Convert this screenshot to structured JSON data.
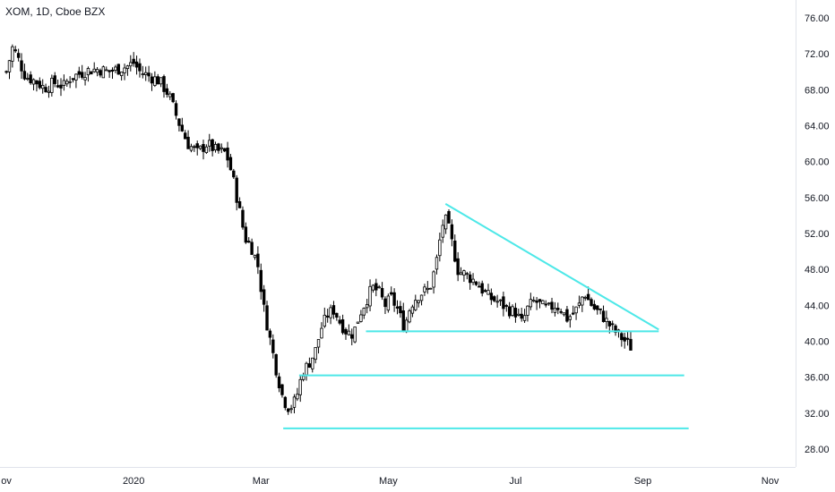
{
  "symbol_title": "XOM, 1D, Cboe BZX",
  "colors": {
    "candle": "#000000",
    "trendline": "#4de8e8",
    "axis": "#e0e3eb",
    "text": "#131722"
  },
  "chart_data": {
    "type": "candlestick",
    "x_axis": {
      "min_month_index": -0.1,
      "max_month_index": 12.4,
      "ticks": [
        {
          "label": "ov",
          "month_index": 0
        },
        {
          "label": "2020",
          "month_index": 2
        },
        {
          "label": "Mar",
          "month_index": 4
        },
        {
          "label": "May",
          "month_index": 6
        },
        {
          "label": "Jul",
          "month_index": 8
        },
        {
          "label": "Sep",
          "month_index": 10
        },
        {
          "label": "Nov",
          "month_index": 12
        }
      ]
    },
    "y_axis": {
      "min": 26.0,
      "max": 78.0,
      "ticks": [
        "28.00",
        "32.00",
        "36.00",
        "40.00",
        "44.00",
        "48.00",
        "52.00",
        "56.00",
        "60.00",
        "64.00",
        "68.00",
        "72.00",
        "76.00"
      ]
    },
    "close_path": [
      [
        0.0,
        70.0
      ],
      [
        0.1,
        72.8
      ],
      [
        0.2,
        71.2
      ],
      [
        0.3,
        69.5
      ],
      [
        0.45,
        69.0
      ],
      [
        0.6,
        68.2
      ],
      [
        0.75,
        68.8
      ],
      [
        0.9,
        68.4
      ],
      [
        1.0,
        69.3
      ],
      [
        1.15,
        69.8
      ],
      [
        1.3,
        70.2
      ],
      [
        1.45,
        70.3
      ],
      [
        1.6,
        70.0
      ],
      [
        1.75,
        70.3
      ],
      [
        1.9,
        70.6
      ],
      [
        2.0,
        71.0
      ],
      [
        2.1,
        70.0
      ],
      [
        2.25,
        69.5
      ],
      [
        2.4,
        69.0
      ],
      [
        2.55,
        67.5
      ],
      [
        2.7,
        64.5
      ],
      [
        2.85,
        62.0
      ],
      [
        3.0,
        61.0
      ],
      [
        3.15,
        62.0
      ],
      [
        3.3,
        61.2
      ],
      [
        3.45,
        61.0
      ],
      [
        3.55,
        58.5
      ],
      [
        3.65,
        55.0
      ],
      [
        3.75,
        51.5
      ],
      [
        3.85,
        50.5
      ],
      [
        3.95,
        48.5
      ],
      [
        4.05,
        43.5
      ],
      [
        4.15,
        40.0
      ],
      [
        4.25,
        36.5
      ],
      [
        4.35,
        33.5
      ],
      [
        4.45,
        32.5
      ],
      [
        4.55,
        33.5
      ],
      [
        4.65,
        36.5
      ],
      [
        4.75,
        37.5
      ],
      [
        4.85,
        38.8
      ],
      [
        4.95,
        41.5
      ],
      [
        5.05,
        43.0
      ],
      [
        5.15,
        43.5
      ],
      [
        5.25,
        42.0
      ],
      [
        5.35,
        41.0
      ],
      [
        5.45,
        40.8
      ],
      [
        5.55,
        43.0
      ],
      [
        5.65,
        44.5
      ],
      [
        5.75,
        46.0
      ],
      [
        5.85,
        45.5
      ],
      [
        5.95,
        44.0
      ],
      [
        6.05,
        44.8
      ],
      [
        6.15,
        43.5
      ],
      [
        6.25,
        41.5
      ],
      [
        6.35,
        44.0
      ],
      [
        6.45,
        45.0
      ],
      [
        6.55,
        45.5
      ],
      [
        6.65,
        45.8
      ],
      [
        6.75,
        48.5
      ],
      [
        6.85,
        53.0
      ],
      [
        6.92,
        53.5
      ],
      [
        7.0,
        51.0
      ],
      [
        7.1,
        47.8
      ],
      [
        7.2,
        47.5
      ],
      [
        7.3,
        47.0
      ],
      [
        7.4,
        46.5
      ],
      [
        7.5,
        45.5
      ],
      [
        7.6,
        44.8
      ],
      [
        7.7,
        44.5
      ],
      [
        7.8,
        44.0
      ],
      [
        7.9,
        43.5
      ],
      [
        8.0,
        43.2
      ],
      [
        8.1,
        42.0
      ],
      [
        8.2,
        43.8
      ],
      [
        8.3,
        44.5
      ],
      [
        8.4,
        44.0
      ],
      [
        8.5,
        43.5
      ],
      [
        8.6,
        44.0
      ],
      [
        8.7,
        43.8
      ],
      [
        8.8,
        42.5
      ],
      [
        8.9,
        43.0
      ],
      [
        9.0,
        44.0
      ],
      [
        9.08,
        45.5
      ],
      [
        9.15,
        44.5
      ],
      [
        9.25,
        43.5
      ],
      [
        9.35,
        43.0
      ],
      [
        9.45,
        42.0
      ],
      [
        9.55,
        41.2
      ],
      [
        9.65,
        40.5
      ],
      [
        9.75,
        39.8
      ],
      [
        9.82,
        39.3
      ]
    ],
    "trendlines": [
      {
        "kind": "resistance",
        "x1": 6.9,
        "y1": 55.3,
        "x2": 10.25,
        "y2": 41.3
      },
      {
        "kind": "support",
        "x1": 5.65,
        "y1": 41.1,
        "x2": 10.25,
        "y2": 41.1
      },
      {
        "kind": "support",
        "x1": 4.6,
        "y1": 36.2,
        "x2": 10.65,
        "y2": 36.2
      },
      {
        "kind": "support",
        "x1": 4.35,
        "y1": 30.3,
        "x2": 10.72,
        "y2": 30.3
      }
    ]
  }
}
